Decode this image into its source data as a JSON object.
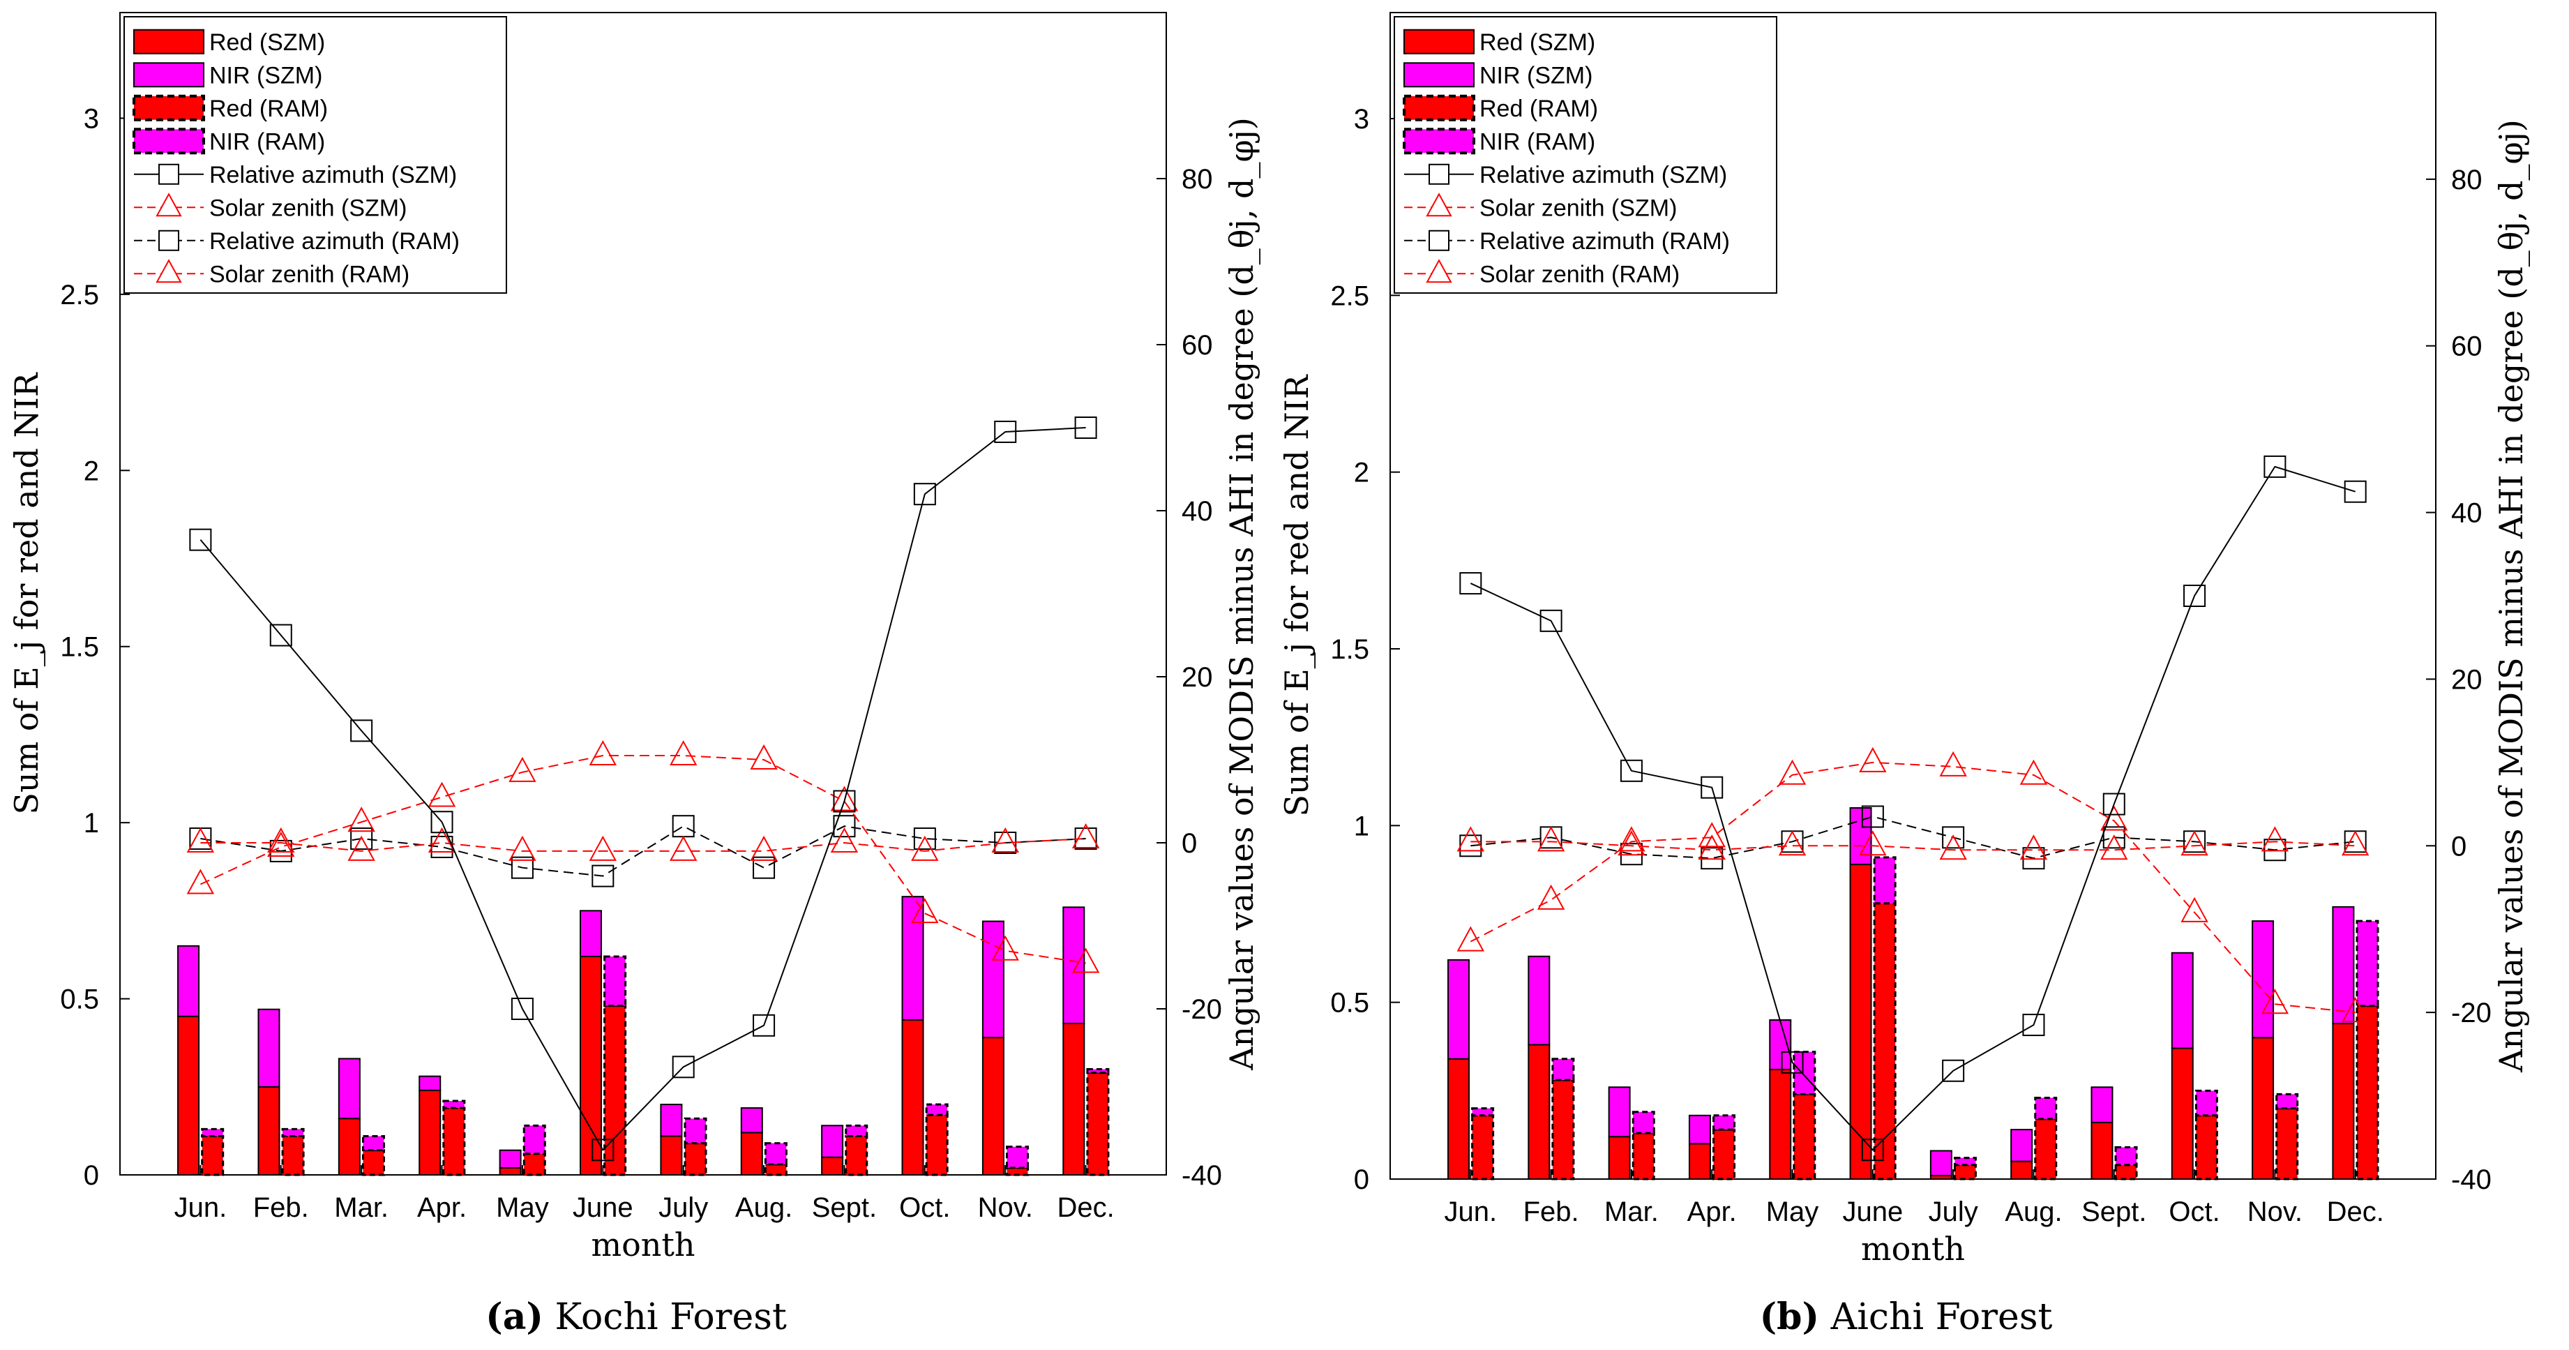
{
  "chart_data": [
    {
      "type": "bar",
      "caption_label": "(a)",
      "caption_text": " Kochi Forest",
      "categories": [
        "Jun.",
        "Feb.",
        "Mar.",
        "Apr.",
        "May",
        "June",
        "July",
        "Aug.",
        "Sept.",
        "Oct.",
        "Nov.",
        "Dec."
      ],
      "xlabel": "month",
      "ylabel_left": "Sum of E_j for red and NIR",
      "ylabel_right": "Angular values of MODIS minus AHI in degree (d_θj, d_φj)",
      "ylim_left": [
        0,
        3.3
      ],
      "ylim_right": [
        -40,
        100
      ],
      "yticks_left": [
        0,
        0.5,
        1,
        1.5,
        2,
        2.5,
        3
      ],
      "yticks_right": [
        -40,
        -20,
        0,
        20,
        40,
        60,
        80
      ],
      "grid": false,
      "legend_position": "top-left",
      "legend": [
        "Red (SZM)",
        "NIR (SZM)",
        "Red (RAM)",
        "NIR (RAM)",
        "Relative azimuth (SZM)",
        "Solar zenith (SZM)",
        "Relative azimuth (RAM)",
        "Solar zenith (RAM)"
      ],
      "colors": {
        "red": "#ff0000",
        "nir": "#ff00ff",
        "azimuth": "#000000",
        "zenith": "#ff0000"
      },
      "series": [
        {
          "name": "Red (SZM)",
          "values": [
            0.45,
            0.25,
            0.16,
            0.24,
            0.02,
            0.62,
            0.11,
            0.12,
            0.05,
            0.44,
            0.39,
            0.43
          ]
        },
        {
          "name": "NIR (SZM)",
          "values": [
            0.2,
            0.22,
            0.17,
            0.04,
            0.05,
            0.13,
            0.09,
            0.07,
            0.09,
            0.35,
            0.33,
            0.33
          ]
        },
        {
          "name": "Red (RAM)",
          "values": [
            0.11,
            0.11,
            0.07,
            0.19,
            0.06,
            0.48,
            0.09,
            0.03,
            0.11,
            0.17,
            0.02,
            0.29
          ]
        },
        {
          "name": "NIR (RAM)",
          "values": [
            0.02,
            0.02,
            0.04,
            0.02,
            0.08,
            0.14,
            0.07,
            0.06,
            0.03,
            0.03,
            0.06,
            0.01
          ]
        },
        {
          "name": "Relative azimuth (SZM)",
          "axis": "right",
          "values": [
            36.5,
            25,
            13.5,
            2.5,
            -20,
            -37,
            -27,
            -22,
            5,
            42,
            49.5,
            50
          ]
        },
        {
          "name": "Solar zenith (SZM)",
          "axis": "right",
          "values": [
            -5,
            -0.5,
            2.5,
            5.5,
            8.5,
            10.5,
            10.5,
            10,
            5,
            -8.5,
            -13,
            -14.5
          ]
        },
        {
          "name": "Relative azimuth (RAM)",
          "axis": "right",
          "values": [
            0.5,
            -1,
            0.5,
            -0.5,
            -3,
            -4,
            2,
            -3,
            2,
            0.5,
            0,
            0.5
          ]
        },
        {
          "name": "Solar zenith (RAM)",
          "axis": "right",
          "values": [
            0,
            0,
            -1,
            0,
            -1,
            -1,
            -1,
            -1,
            0,
            -1,
            0,
            0.5
          ]
        }
      ]
    },
    {
      "type": "bar",
      "caption_label": "(b)",
      "caption_text": " Aichi Forest",
      "categories": [
        "Jun.",
        "Feb.",
        "Mar.",
        "Apr.",
        "May",
        "June",
        "July",
        "Aug.",
        "Sept.",
        "Oct.",
        "Nov.",
        "Dec."
      ],
      "xlabel": "month",
      "ylabel_left": "Sum of E_j for red and NIR",
      "ylabel_right": "Angular values of MODIS minus AHI in degree (d_θj, d_φj)",
      "ylim_left": [
        0,
        3.3
      ],
      "ylim_right": [
        -40,
        100
      ],
      "yticks_left": [
        0,
        0.5,
        1,
        1.5,
        2,
        2.5,
        3
      ],
      "yticks_right": [
        -40,
        -20,
        0,
        20,
        40,
        60,
        80
      ],
      "grid": false,
      "legend_position": "top-left",
      "legend": [
        "Red (SZM)",
        "NIR (SZM)",
        "Red (RAM)",
        "NIR (RAM)",
        "Relative azimuth (SZM)",
        "Solar zenith (SZM)",
        "Relative azimuth (RAM)",
        "Solar zenith (RAM)"
      ],
      "colors": {
        "red": "#ff0000",
        "nir": "#ff00ff",
        "azimuth": "#000000",
        "zenith": "#ff0000"
      },
      "series": [
        {
          "name": "Red (SZM)",
          "values": [
            0.34,
            0.38,
            0.12,
            0.1,
            0.31,
            0.89,
            0.01,
            0.05,
            0.16,
            0.37,
            0.4,
            0.44
          ]
        },
        {
          "name": "NIR (SZM)",
          "values": [
            0.28,
            0.25,
            0.14,
            0.08,
            0.14,
            0.16,
            0.07,
            0.09,
            0.1,
            0.27,
            0.33,
            0.33
          ]
        },
        {
          "name": "Red (RAM)",
          "values": [
            0.18,
            0.28,
            0.13,
            0.14,
            0.24,
            0.78,
            0.04,
            0.17,
            0.04,
            0.18,
            0.2,
            0.49
          ]
        },
        {
          "name": "NIR (RAM)",
          "values": [
            0.02,
            0.06,
            0.06,
            0.04,
            0.12,
            0.13,
            0.02,
            0.06,
            0.05,
            0.07,
            0.04,
            0.24
          ]
        },
        {
          "name": "Relative azimuth (SZM)",
          "axis": "right",
          "values": [
            31.5,
            27,
            9,
            7,
            -26,
            -36.5,
            -27,
            -21.5,
            5,
            30,
            45.5,
            42.5
          ]
        },
        {
          "name": "Solar zenith (SZM)",
          "axis": "right",
          "values": [
            -11.5,
            -6.5,
            0.5,
            1,
            8.5,
            10,
            9.5,
            8.5,
            3,
            -8,
            -19,
            -20
          ]
        },
        {
          "name": "Relative azimuth (RAM)",
          "axis": "right",
          "values": [
            0,
            1,
            -1,
            -1.5,
            0.5,
            3.5,
            1,
            -1.5,
            1,
            0.5,
            -0.5,
            0.5
          ]
        },
        {
          "name": "Solar zenith (RAM)",
          "axis": "right",
          "values": [
            0.5,
            0.5,
            0,
            -0.5,
            0,
            0,
            -0.5,
            -0.5,
            -0.5,
            0,
            0.5,
            0
          ]
        }
      ]
    }
  ]
}
